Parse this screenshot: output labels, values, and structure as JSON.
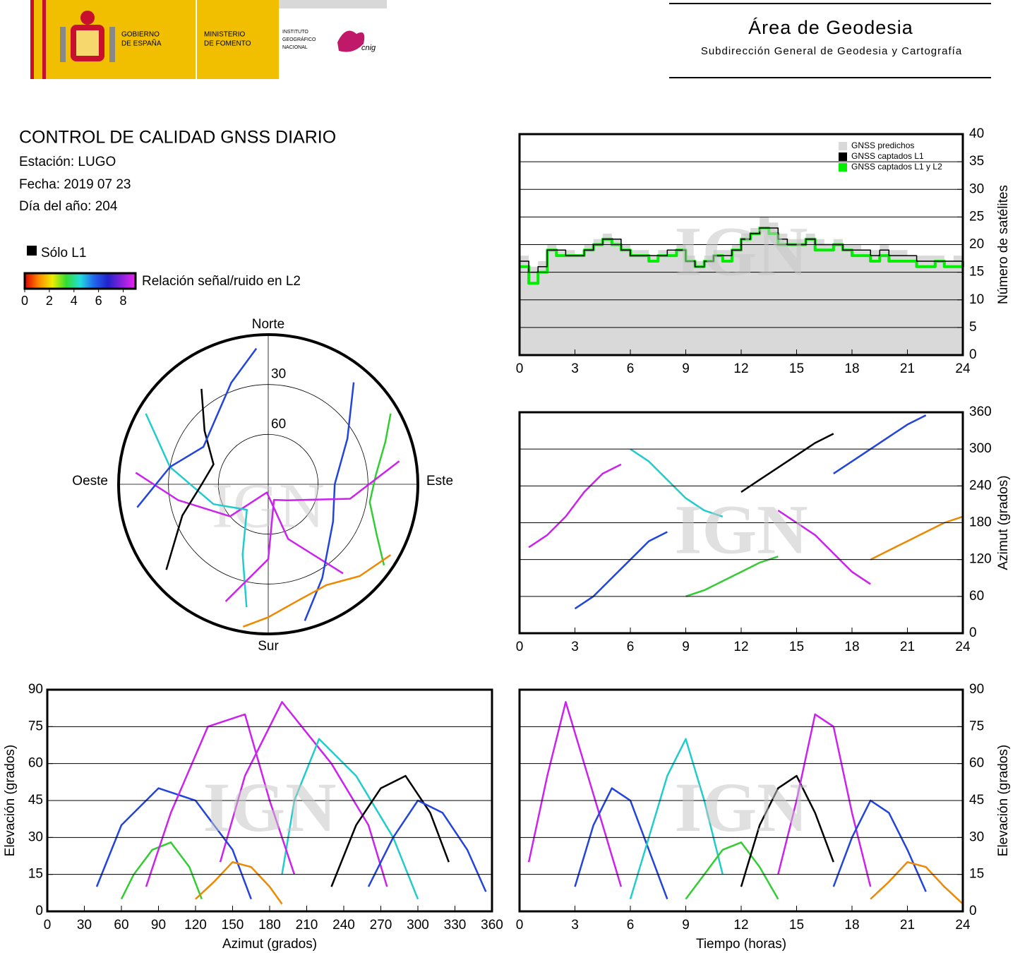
{
  "header": {
    "gov_lines": [
      "GOBIERNO",
      "DE ESPAÑA"
    ],
    "ministry_lines": [
      "MINISTERIO",
      "DE FOMENTO"
    ],
    "institute_lines": [
      "INSTITUTO",
      "GEOGRÁFICO",
      "NACIONAL"
    ],
    "cnig": "cnig",
    "area": "Área de Geodesia",
    "subdirection": "Subdirección General de Geodesia y Cartografía"
  },
  "report": {
    "title": "CONTROL DE CALIDAD GNSS DIARIO",
    "station": "Estación: LUGO",
    "date": "Fecha: 2019 07 23",
    "doy": "Día del año: 204"
  },
  "watermark": "IGN",
  "chart_data": [
    {
      "type": "polar",
      "north": "Norte",
      "south": "Sur",
      "east": "Este",
      "west": "Oeste",
      "rlim": [
        90,
        0
      ],
      "rticks": [
        30,
        60
      ],
      "l1_only": {
        "label": "Sólo L1",
        "color": "#000000"
      },
      "colorbar": {
        "label": "Relación señal/ruido en L2",
        "lim": [
          0,
          9
        ],
        "ticks": [
          0,
          2,
          4,
          6,
          8
        ],
        "colors": [
          "#dd0000",
          "#ff8800",
          "#eeee00",
          "#33dd33",
          "#22dddd",
          "#2266ee",
          "#2222cc",
          "#8822dd",
          "#ee22ee"
        ]
      },
      "series": [
        {
          "color": "#cc22ee",
          "azimuth": [
            140,
            160,
            190,
            230,
            260,
            275
          ],
          "elevation": [
            20,
            55,
            85,
            60,
            35,
            10
          ]
        },
        {
          "color": "#2244dd",
          "azimuth": [
            40,
            60,
            90,
            120,
            150,
            165
          ],
          "elevation": [
            10,
            35,
            50,
            45,
            25,
            5
          ]
        },
        {
          "color": "#22cccc",
          "azimuth": [
            300,
            280,
            250,
            220,
            200,
            190
          ],
          "elevation": [
            5,
            30,
            55,
            70,
            45,
            15
          ]
        },
        {
          "color": "#33cc33",
          "azimuth": [
            60,
            70,
            85,
            100,
            115,
            125
          ],
          "elevation": [
            5,
            15,
            25,
            28,
            18,
            5
          ]
        },
        {
          "color": "#000000",
          "azimuth": [
            230,
            250,
            270,
            290,
            310,
            325
          ],
          "elevation": [
            10,
            35,
            50,
            55,
            40,
            20
          ]
        },
        {
          "color": "#cc22ee",
          "azimuth": [
            200,
            180,
            160,
            130,
            100,
            80
          ],
          "elevation": [
            15,
            45,
            80,
            75,
            40,
            10
          ]
        },
        {
          "color": "#2244dd",
          "azimuth": [
            260,
            280,
            300,
            320,
            340,
            355
          ],
          "elevation": [
            10,
            30,
            45,
            40,
            25,
            8
          ]
        },
        {
          "color": "#ee8800",
          "azimuth": [
            120,
            135,
            150,
            165,
            180,
            190
          ],
          "elevation": [
            5,
            12,
            20,
            18,
            10,
            3
          ]
        }
      ]
    },
    {
      "type": "line",
      "step": true,
      "ylabel": "Número de satélites",
      "legend": "upper right",
      "grid": true,
      "xlim": [
        0,
        24
      ],
      "xticks": [
        0,
        3,
        6,
        9,
        12,
        15,
        18,
        21,
        24
      ],
      "ylim": [
        0,
        40
      ],
      "yticks": [
        0,
        5,
        10,
        15,
        20,
        25,
        30,
        35,
        40
      ],
      "x": [
        0,
        0.5,
        1,
        1.5,
        2,
        2.5,
        3,
        3.5,
        4,
        4.5,
        5,
        5.5,
        6,
        6.5,
        7,
        7.5,
        8,
        8.5,
        9,
        9.5,
        10,
        10.5,
        11,
        11.5,
        12,
        12.5,
        13,
        13.5,
        14,
        14.5,
        15,
        15.5,
        16,
        16.5,
        17,
        17.5,
        18,
        18.5,
        19,
        19.5,
        20,
        20.5,
        21,
        21.5,
        22,
        22.5,
        23,
        23.5,
        24
      ],
      "series": [
        {
          "name": "GNSS predichos",
          "color": "#d9d9d9",
          "fill": true,
          "values": [
            18,
            16,
            17,
            20,
            19,
            19,
            18,
            20,
            21,
            22,
            21,
            20,
            19,
            19,
            18,
            19,
            19,
            20,
            18,
            17,
            18,
            19,
            19,
            20,
            22,
            23,
            25,
            24,
            22,
            21,
            21,
            22,
            21,
            20,
            21,
            20,
            20,
            19,
            19,
            20,
            19,
            19,
            18,
            18,
            18,
            18,
            17,
            18,
            18
          ]
        },
        {
          "name": "GNSS captados L1",
          "color": "#000000",
          "values": [
            17,
            15,
            16,
            19,
            19,
            18,
            18,
            19,
            20,
            21,
            21,
            19,
            18,
            18,
            18,
            18,
            19,
            19,
            17,
            16,
            17,
            18,
            18,
            19,
            21,
            22,
            23,
            23,
            21,
            20,
            20,
            21,
            20,
            20,
            20,
            19,
            19,
            19,
            18,
            19,
            18,
            18,
            18,
            17,
            17,
            17,
            17,
            17,
            18
          ]
        },
        {
          "name": "GNSS captados L1 y L2",
          "color": "#00ee00",
          "values": [
            16,
            13,
            15,
            19,
            18,
            18,
            18,
            19,
            20,
            21,
            20,
            19,
            18,
            18,
            17,
            18,
            18,
            19,
            17,
            16,
            17,
            18,
            17,
            19,
            21,
            22,
            23,
            22,
            20,
            20,
            20,
            21,
            19,
            19,
            20,
            19,
            18,
            18,
            17,
            18,
            17,
            17,
            17,
            16,
            16,
            17,
            16,
            16,
            17
          ]
        }
      ]
    },
    {
      "type": "line",
      "ylabel": "Azimut (grados)",
      "grid": true,
      "xlim": [
        0,
        24
      ],
      "xticks": [
        0,
        3,
        6,
        9,
        12,
        15,
        18,
        21,
        24
      ],
      "ylim": [
        0,
        360
      ],
      "yticks": [
        0,
        60,
        120,
        180,
        240,
        300,
        360
      ],
      "series": [
        {
          "color": "#cc22ee",
          "x": [
            0.5,
            1.5,
            2.5,
            3.5,
            4.5,
            5.5
          ],
          "values": [
            140,
            160,
            190,
            230,
            260,
            275
          ]
        },
        {
          "color": "#2244dd",
          "x": [
            3,
            4,
            5,
            6,
            7,
            8
          ],
          "values": [
            40,
            60,
            90,
            120,
            150,
            165
          ]
        },
        {
          "color": "#22cccc",
          "x": [
            6,
            7,
            8,
            9,
            10,
            11
          ],
          "values": [
            300,
            280,
            250,
            220,
            200,
            190
          ]
        },
        {
          "color": "#33cc33",
          "x": [
            9,
            10,
            11,
            12,
            13,
            14
          ],
          "values": [
            60,
            70,
            85,
            100,
            115,
            125
          ]
        },
        {
          "color": "#000000",
          "x": [
            12,
            13,
            14,
            15,
            16,
            17
          ],
          "values": [
            230,
            250,
            270,
            290,
            310,
            325
          ]
        },
        {
          "color": "#cc22ee",
          "x": [
            14,
            15,
            16,
            17,
            18,
            19
          ],
          "values": [
            200,
            180,
            160,
            130,
            100,
            80
          ]
        },
        {
          "color": "#2244dd",
          "x": [
            17,
            18,
            19,
            20,
            21,
            22
          ],
          "values": [
            260,
            280,
            300,
            320,
            340,
            355
          ]
        },
        {
          "color": "#ee8800",
          "x": [
            19,
            20,
            21,
            22,
            23,
            24
          ],
          "values": [
            120,
            135,
            150,
            165,
            180,
            190
          ]
        }
      ]
    },
    {
      "type": "line",
      "xlabel": "Azimut (grados)",
      "ylabel": "Elevación (grados)",
      "grid": true,
      "xlim": [
        0,
        360
      ],
      "xticks": [
        0,
        30,
        60,
        90,
        120,
        150,
        180,
        210,
        240,
        270,
        300,
        330,
        360
      ],
      "ylim": [
        0,
        90
      ],
      "yticks": [
        0,
        15,
        30,
        45,
        60,
        75,
        90
      ],
      "series": [
        {
          "color": "#cc22ee",
          "x": [
            140,
            160,
            190,
            230,
            260,
            275
          ],
          "values": [
            20,
            55,
            85,
            60,
            35,
            10
          ]
        },
        {
          "color": "#2244dd",
          "x": [
            40,
            60,
            90,
            120,
            150,
            165
          ],
          "values": [
            10,
            35,
            50,
            45,
            25,
            5
          ]
        },
        {
          "color": "#22cccc",
          "x": [
            300,
            280,
            250,
            220,
            200,
            190
          ],
          "values": [
            5,
            30,
            55,
            70,
            45,
            15
          ]
        },
        {
          "color": "#33cc33",
          "x": [
            60,
            70,
            85,
            100,
            115,
            125
          ],
          "values": [
            5,
            15,
            25,
            28,
            18,
            5
          ]
        },
        {
          "color": "#000000",
          "x": [
            230,
            250,
            270,
            290,
            310,
            325
          ],
          "values": [
            10,
            35,
            50,
            55,
            40,
            20
          ]
        },
        {
          "color": "#cc22ee",
          "x": [
            200,
            180,
            160,
            130,
            100,
            80
          ],
          "values": [
            15,
            45,
            80,
            75,
            40,
            10
          ]
        },
        {
          "color": "#2244dd",
          "x": [
            260,
            280,
            300,
            320,
            340,
            355
          ],
          "values": [
            10,
            30,
            45,
            40,
            25,
            8
          ]
        },
        {
          "color": "#ee8800",
          "x": [
            120,
            135,
            150,
            165,
            180,
            190
          ],
          "values": [
            5,
            12,
            20,
            18,
            10,
            3
          ]
        }
      ]
    },
    {
      "type": "line",
      "xlabel": "Tiempo (horas)",
      "ylabel": "Elevación (grados)",
      "grid": true,
      "xlim": [
        0,
        24
      ],
      "xticks": [
        0,
        3,
        6,
        9,
        12,
        15,
        18,
        21,
        24
      ],
      "ylim": [
        0,
        90
      ],
      "yticks": [
        0,
        15,
        30,
        45,
        60,
        75,
        90
      ],
      "series": [
        {
          "color": "#cc22ee",
          "x": [
            0.5,
            1.5,
            2.5,
            3.5,
            4.5,
            5.5
          ],
          "values": [
            20,
            55,
            85,
            60,
            35,
            10
          ]
        },
        {
          "color": "#2244dd",
          "x": [
            3,
            4,
            5,
            6,
            7,
            8
          ],
          "values": [
            10,
            35,
            50,
            45,
            25,
            5
          ]
        },
        {
          "color": "#22cccc",
          "x": [
            6,
            7,
            8,
            9,
            10,
            11
          ],
          "values": [
            5,
            30,
            55,
            70,
            45,
            15
          ]
        },
        {
          "color": "#33cc33",
          "x": [
            9,
            10,
            11,
            12,
            13,
            14
          ],
          "values": [
            5,
            15,
            25,
            28,
            18,
            5
          ]
        },
        {
          "color": "#000000",
          "x": [
            12,
            13,
            14,
            15,
            16,
            17
          ],
          "values": [
            10,
            35,
            50,
            55,
            40,
            20
          ]
        },
        {
          "color": "#cc22ee",
          "x": [
            14,
            15,
            16,
            17,
            18,
            19
          ],
          "values": [
            15,
            45,
            80,
            75,
            40,
            10
          ]
        },
        {
          "color": "#2244dd",
          "x": [
            17,
            18,
            19,
            20,
            21,
            22
          ],
          "values": [
            10,
            30,
            45,
            40,
            25,
            8
          ]
        },
        {
          "color": "#ee8800",
          "x": [
            19,
            20,
            21,
            22,
            23,
            24
          ],
          "values": [
            5,
            12,
            20,
            18,
            10,
            3
          ]
        }
      ]
    }
  ]
}
